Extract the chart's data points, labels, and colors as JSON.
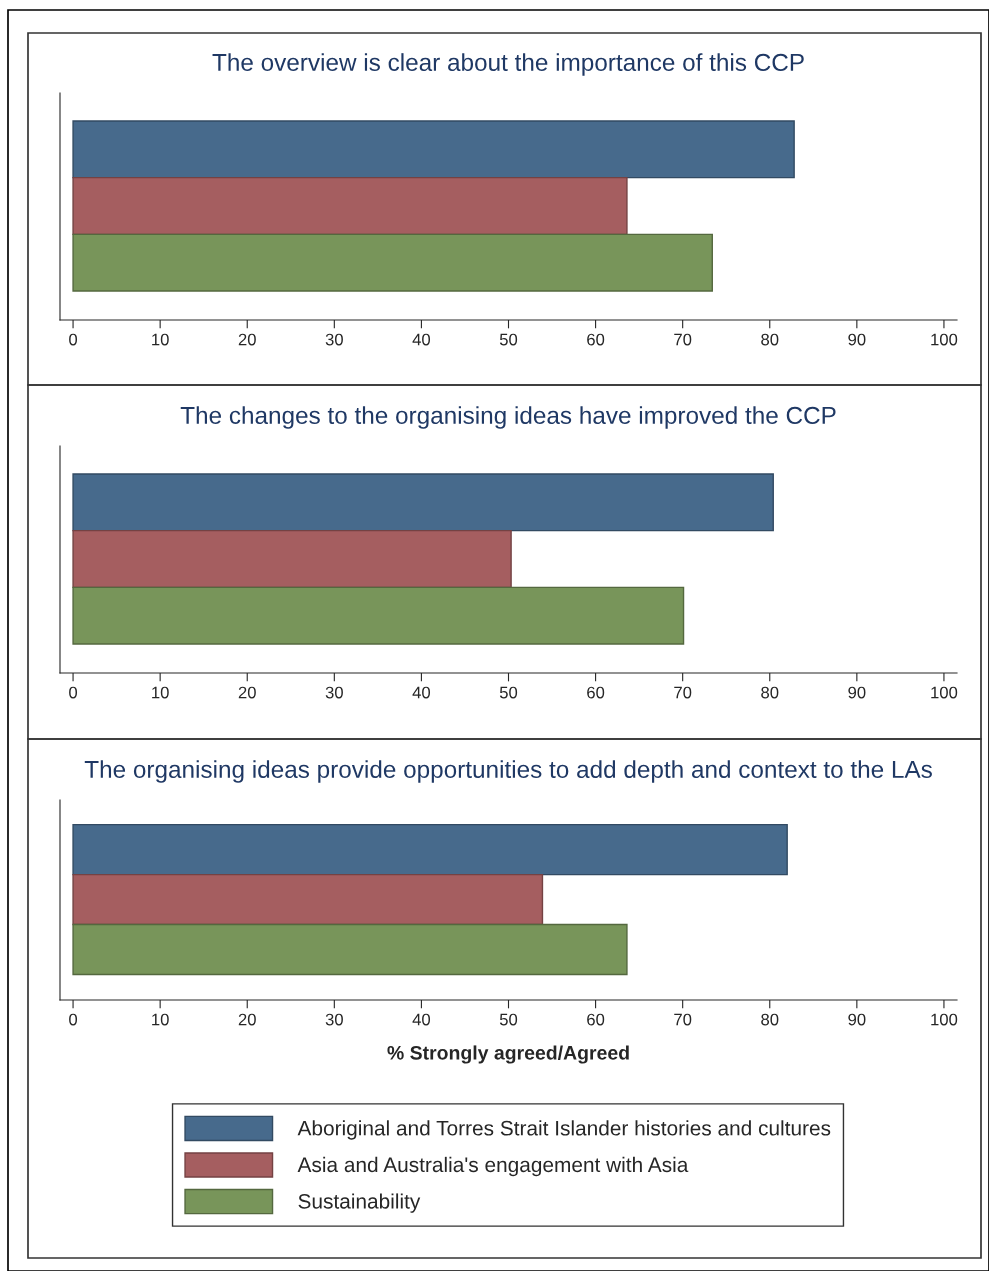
{
  "chart_data": [
    {
      "type": "bar",
      "orientation": "horizontal",
      "title": "The overview is clear about the importance of this CCP",
      "categories": [
        null
      ],
      "xlim": [
        -1.5,
        101.5
      ],
      "xticks": [
        0,
        10,
        20,
        30,
        40,
        50,
        60,
        70,
        80,
        90,
        100
      ],
      "grid": false,
      "series": [
        {
          "color": "#476a8c",
          "values": [
            82.8
          ]
        },
        {
          "color": "#a55e60",
          "values": [
            63.6
          ]
        },
        {
          "color": "#78955a",
          "values": [
            73.4
          ]
        }
      ]
    },
    {
      "type": "bar",
      "orientation": "horizontal",
      "title": "The changes to the organising ideas have improved the CCP",
      "categories": [
        null
      ],
      "xlim": [
        -1.5,
        101.5
      ],
      "xticks": [
        0,
        10,
        20,
        30,
        40,
        50,
        60,
        70,
        80,
        90,
        100
      ],
      "grid": false,
      "series": [
        {
          "color": "#476a8c",
          "values": [
            80.4
          ]
        },
        {
          "color": "#a55e60",
          "values": [
            50.3
          ]
        },
        {
          "color": "#78955a",
          "values": [
            70.1
          ]
        }
      ]
    },
    {
      "type": "bar",
      "orientation": "horizontal",
      "title": "The organising ideas provide opportunities to add depth and context to the LAs",
      "xlabel": "% Strongly agreed/Agreed",
      "categories": [
        null
      ],
      "xlim": [
        -1.5,
        101.5
      ],
      "xticks": [
        0,
        10,
        20,
        30,
        40,
        50,
        60,
        70,
        80,
        90,
        100
      ],
      "grid": false,
      "legend": "bottom",
      "series": [
        {
          "name": "Aboriginal and Torres Strait Islander histories and cultures",
          "color": "#476a8c",
          "values": [
            82.0
          ]
        },
        {
          "name": "Asia and Australia's engagement with Asia",
          "color": "#a55e60",
          "values": [
            53.9
          ]
        },
        {
          "name": "Sustainability",
          "color": "#78955a",
          "values": [
            63.6
          ]
        }
      ]
    }
  ]
}
